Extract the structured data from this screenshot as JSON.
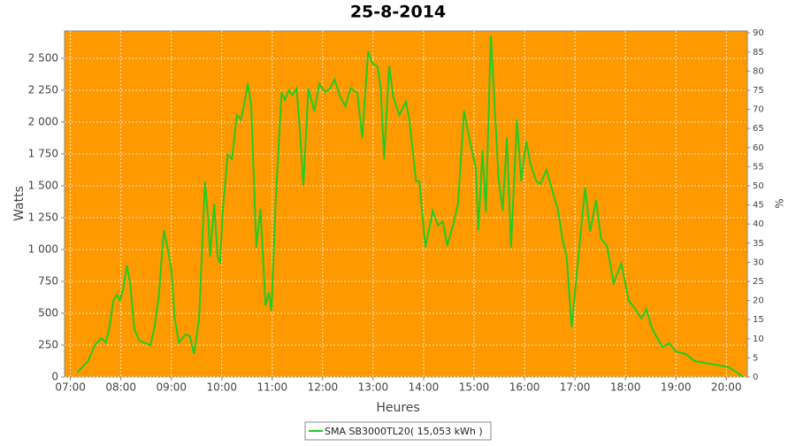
{
  "chart_data": {
    "type": "line",
    "title": "25-8-2014",
    "x_label": "Heures",
    "y_label": "Watts",
    "y2_label": "%",
    "xlim": [
      "06:53",
      "20:25"
    ],
    "xticks": [
      "07:00",
      "08:00",
      "09:00",
      "10:00",
      "11:00",
      "12:00",
      "13:00",
      "14:00",
      "15:00",
      "16:00",
      "17:00",
      "18:00",
      "19:00",
      "20:00"
    ],
    "ylim": [
      0,
      2715
    ],
    "yticks": [
      0,
      250,
      500,
      750,
      {
        "value": 1000,
        "label": "1 000"
      },
      {
        "value": 1250,
        "label": "1 250"
      },
      {
        "value": 1500,
        "label": "1 500"
      },
      {
        "value": 1750,
        "label": "1 750"
      },
      {
        "value": 2000,
        "label": "2 000"
      },
      {
        "value": 2250,
        "label": "2 250"
      },
      {
        "value": 2500,
        "label": "2 500"
      }
    ],
    "y2lim": [
      0,
      90.5
    ],
    "y2ticks": [
      0,
      5,
      10,
      15,
      20,
      25,
      30,
      35,
      40,
      45,
      50,
      55,
      60,
      65,
      70,
      75,
      80,
      85,
      90
    ],
    "grid": true,
    "background": "#ff9900",
    "x": [
      "07:08",
      "07:21",
      "07:29",
      "07:37",
      "07:42",
      "07:46",
      "07:51",
      "07:55",
      "07:59",
      "08:03",
      "08:07",
      "08:11",
      "08:16",
      "08:22",
      "08:29",
      "08:35",
      "08:40",
      "08:45",
      "08:51",
      "08:56",
      "09:00",
      "09:04",
      "09:09",
      "09:17",
      "09:22",
      "09:27",
      "09:33",
      "09:40",
      "09:44",
      "09:46",
      "09:51",
      "09:55",
      "09:58",
      "10:01",
      "10:07",
      "10:12",
      "10:18",
      "10:23",
      "10:31",
      "10:35",
      "10:41",
      "10:46",
      "10:52",
      "10:56",
      "10:59",
      "11:04",
      "11:11",
      "11:15",
      "11:20",
      "11:24",
      "11:29",
      "11:33",
      "11:37",
      "11:43",
      "11:50",
      "11:56",
      "12:03",
      "12:09",
      "12:14",
      "12:21",
      "12:27",
      "12:33",
      "12:41",
      "12:47",
      "12:54",
      "12:59",
      "13:05",
      "13:09",
      "13:13",
      "13:19",
      "13:24",
      "13:31",
      "13:39",
      "13:43",
      "13:51",
      "13:55",
      "14:02",
      "14:11",
      "14:17",
      "14:23",
      "14:28",
      "14:35",
      "14:41",
      "14:48",
      "14:55",
      "15:02",
      "15:05",
      "15:10",
      "15:14",
      "15:20",
      "15:25",
      "15:29",
      "15:34",
      "15:39",
      "15:44",
      "15:51",
      "15:56",
      "16:02",
      "16:07",
      "16:14",
      "16:19",
      "16:26",
      "16:33",
      "16:40",
      "16:45",
      "16:50",
      "16:56",
      "17:03",
      "17:12",
      "17:18",
      "17:25",
      "17:31",
      "17:38",
      "17:46",
      "17:55",
      "18:04",
      "18:12",
      "18:19",
      "18:25",
      "18:32",
      "18:44",
      "18:52",
      "19:00",
      "19:12",
      "19:22",
      "19:35",
      "19:49",
      "20:03",
      "20:14",
      "20:20"
    ],
    "series": [
      {
        "name": "SMA SB3000TL20( 15,053 kWh )",
        "color": "#22cc22",
        "values": [
          35,
          125,
          250,
          305,
          270,
          375,
          600,
          645,
          600,
          700,
          875,
          735,
          375,
          285,
          265,
          250,
          390,
          630,
          1150,
          1000,
          840,
          460,
          270,
          335,
          320,
          180,
          460,
          1535,
          1220,
          945,
          1360,
          945,
          890,
          1290,
          1745,
          1710,
          2055,
          2020,
          2300,
          2125,
          1015,
          1320,
          560,
          665,
          515,
          1360,
          2230,
          2175,
          2250,
          2210,
          2265,
          1915,
          1500,
          2265,
          2085,
          2300,
          2235,
          2265,
          2335,
          2195,
          2125,
          2265,
          2230,
          1875,
          2555,
          2460,
          2440,
          2265,
          1710,
          2440,
          2195,
          2055,
          2160,
          2020,
          1535,
          1535,
          1015,
          1305,
          1190,
          1220,
          1030,
          1190,
          1360,
          2090,
          1850,
          1640,
          1150,
          1780,
          1290,
          2680,
          2055,
          1570,
          1305,
          1880,
          1015,
          2020,
          1535,
          1850,
          1675,
          1535,
          1515,
          1625,
          1465,
          1305,
          1085,
          945,
          390,
          875,
          1485,
          1140,
          1390,
          1085,
          1030,
          735,
          890,
          600,
          530,
          460,
          530,
          375,
          235,
          265,
          200,
          180,
          125,
          110,
          95,
          75,
          30,
          0
        ]
      }
    ]
  }
}
